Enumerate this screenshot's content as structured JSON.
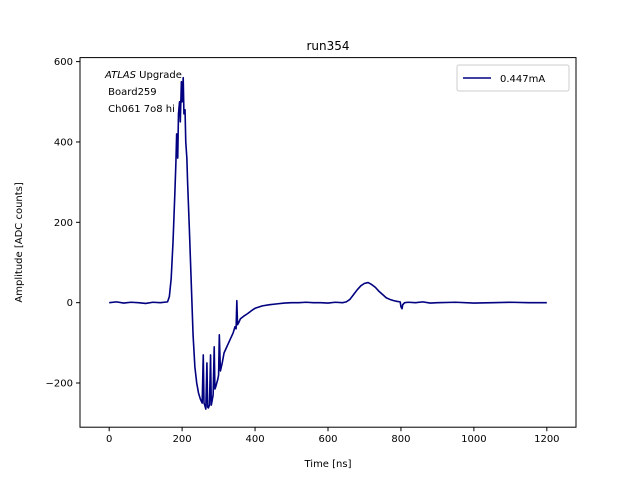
{
  "chart_data": {
    "type": "line",
    "title": "run354",
    "xlabel": "Time [ns]",
    "ylabel": "Amplitude [ADC counts]",
    "xlim": [
      -80,
      1280
    ],
    "ylim": [
      -310,
      610
    ],
    "xticks": [
      0,
      200,
      400,
      600,
      800,
      1000,
      1200
    ],
    "xtick_labels": [
      "0",
      "200",
      "400",
      "600",
      "800",
      "1000",
      "1200"
    ],
    "yticks": [
      -200,
      0,
      200,
      400,
      600
    ],
    "ytick_labels": [
      "−200",
      "0",
      "200",
      "400",
      "600"
    ],
    "grid": false,
    "legend": "top-right",
    "annotation": {
      "italic": "ATLAS",
      "rest": " Upgrade",
      "line2": " Board259",
      "line3": " Ch061 7o8 hi"
    },
    "series": [
      {
        "name": "0.447mA",
        "color": "#000080",
        "x": [
          0,
          20,
          40,
          60,
          80,
          100,
          120,
          140,
          160,
          165,
          170,
          175,
          180,
          183,
          185,
          188,
          190,
          193,
          195,
          198,
          200,
          203,
          205,
          208,
          210,
          213,
          215,
          220,
          225,
          230,
          235,
          240,
          245,
          250,
          255,
          258,
          260,
          262,
          265,
          268,
          270,
          272,
          275,
          278,
          280,
          283,
          285,
          288,
          290,
          292,
          295,
          298,
          300,
          302,
          305,
          310,
          312,
          315,
          320,
          325,
          330,
          335,
          340,
          345,
          348,
          350,
          352,
          355,
          360,
          370,
          380,
          390,
          400,
          420,
          440,
          460,
          480,
          500,
          520,
          540,
          560,
          580,
          600,
          620,
          640,
          650,
          660,
          670,
          680,
          690,
          700,
          710,
          720,
          730,
          740,
          750,
          760,
          770,
          780,
          790,
          798,
          800,
          803,
          805,
          810,
          820,
          840,
          860,
          880,
          900,
          950,
          1000,
          1050,
          1100,
          1150,
          1200
        ],
        "y": [
          0,
          2,
          -1,
          1,
          0,
          -2,
          1,
          0,
          2,
          15,
          60,
          150,
          270,
          350,
          420,
          360,
          470,
          500,
          450,
          550,
          500,
          560,
          470,
          480,
          400,
          360,
          300,
          180,
          50,
          -80,
          -160,
          -200,
          -225,
          -240,
          -250,
          -130,
          -250,
          -255,
          -265,
          -150,
          -260,
          -262,
          -255,
          -130,
          -255,
          -240,
          -230,
          -110,
          -215,
          -210,
          -200,
          -190,
          -180,
          -80,
          -170,
          -150,
          -140,
          -125,
          -115,
          -105,
          -95,
          -85,
          -75,
          -60,
          -65,
          5,
          -55,
          -50,
          -40,
          -33,
          -27,
          -20,
          -14,
          -8,
          -5,
          -3,
          -1,
          0,
          0,
          1,
          0,
          0,
          -1,
          1,
          0,
          2,
          8,
          20,
          32,
          42,
          48,
          50,
          45,
          38,
          28,
          20,
          12,
          8,
          5,
          3,
          2,
          -10,
          -15,
          -5,
          0,
          1,
          0,
          2,
          -1,
          0,
          1,
          -1,
          0,
          1,
          0,
          0
        ]
      }
    ]
  }
}
